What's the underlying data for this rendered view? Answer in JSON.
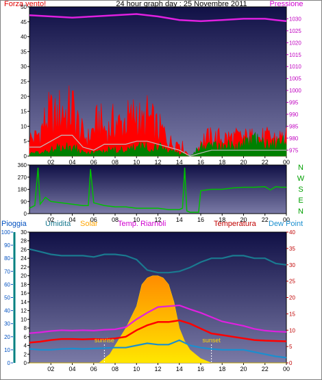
{
  "header": {
    "left_label": "Forza vento!",
    "title": "24 hour graph day : 25 Novembre 2011",
    "right_label": "Pressione"
  },
  "colors": {
    "wind": "#ff0000",
    "gust": "#c0c0c0",
    "avg_wind": "#008000",
    "pressure": "#e020e0",
    "direction": "#00c000",
    "humidity": "#1a7a90",
    "temperature": "#ff0000",
    "dew_point": "#1a8fcf",
    "indoor_temp": "#e020e0",
    "solar": "#ffc000",
    "rain_axis": "#008080",
    "panel_top": "#101046",
    "panel_bottom": "#7a7aa6"
  },
  "lower_legend": {
    "rain": "Pioggia",
    "humidity": "Umidita",
    "solar": "Solar",
    "indoor": "Temp. Riarnoli",
    "temperature": "Temperatura",
    "dew_point": "Dew Point"
  },
  "annotations": {
    "sunrise": "sunrise",
    "sunset": "sunset"
  },
  "compass": [
    "N",
    "W",
    "S",
    "E",
    "N"
  ],
  "chart_data": [
    {
      "type": "line",
      "x_ticks": [
        "02",
        "04",
        "06",
        "08",
        "10",
        "12",
        "14",
        "16",
        "18",
        "20",
        "22",
        "00"
      ],
      "left_axis": {
        "ticks": [
          0,
          5,
          10,
          15,
          20,
          25,
          30,
          35,
          40,
          45,
          50
        ],
        "ylim": [
          0,
          50
        ]
      },
      "right_axis": {
        "ticks": [
          975,
          980,
          985,
          990,
          995,
          1000,
          1005,
          1010,
          1015,
          1020,
          1025,
          1030
        ],
        "ylim": [
          972.5,
          1035
        ]
      },
      "series": [
        {
          "key": "wind",
          "x": [
            0,
            0.5,
            1,
            1.5,
            2,
            2.5,
            3,
            3.5,
            4,
            4.5,
            5,
            5.5,
            6,
            6.5,
            7,
            7.5,
            8,
            8.5,
            9,
            9.5,
            10,
            10.5,
            11,
            11.5,
            12,
            12.5,
            13,
            13.5,
            14,
            14.5,
            15,
            15.5,
            16,
            16.5,
            17,
            17.5,
            18,
            18.5,
            19,
            19.5,
            20,
            20.5,
            21,
            21.5,
            22,
            22.5,
            23,
            23.5,
            24
          ],
          "values": [
            6,
            6,
            8,
            12,
            14,
            12,
            16,
            14,
            16,
            11,
            7,
            6,
            9,
            12,
            9,
            9,
            12,
            10,
            12,
            12,
            15,
            10,
            13,
            11,
            9,
            8,
            5,
            4,
            5,
            2,
            0,
            0,
            5,
            6,
            6,
            6,
            6,
            6,
            6,
            6,
            6,
            6,
            6,
            6,
            6,
            6,
            6,
            6,
            6
          ]
        },
        {
          "key": "gust",
          "x": [
            0,
            1,
            2,
            3,
            4,
            5,
            6,
            7,
            8,
            9,
            10,
            11,
            12,
            13,
            14,
            15,
            16,
            17,
            18,
            19,
            20,
            21,
            22,
            23,
            24
          ],
          "values": [
            3,
            3,
            5,
            7,
            7,
            3,
            2,
            4,
            4,
            4,
            5,
            5,
            4,
            3,
            2,
            0,
            1,
            2,
            2,
            2,
            2,
            2,
            2,
            2,
            2
          ]
        },
        {
          "key": "avg_wind",
          "x": [
            0,
            1,
            2,
            3,
            4,
            5,
            6,
            7,
            8,
            9,
            10,
            11,
            12,
            13,
            14,
            15,
            16,
            17,
            18,
            19,
            20,
            21,
            22,
            23,
            24
          ],
          "values": [
            1,
            1,
            2,
            3,
            3,
            2,
            1,
            2,
            2,
            2,
            3,
            3,
            3,
            2,
            1,
            0,
            3,
            3,
            4,
            3,
            4,
            5,
            4,
            4,
            5
          ]
        },
        {
          "key": "pressure",
          "x": [
            0,
            2,
            4,
            6,
            8,
            10,
            12,
            14,
            16,
            18,
            20,
            22,
            23,
            24
          ],
          "values": [
            1031.5,
            1031,
            1030.5,
            1031,
            1031.5,
            1032,
            1031,
            1029.5,
            1029,
            1029.5,
            1030,
            1030,
            1029.5,
            1029
          ]
        }
      ]
    },
    {
      "type": "line",
      "x_ticks": [
        "02",
        "04",
        "06",
        "08",
        "10",
        "12",
        "14",
        "16",
        "18",
        "20",
        "22",
        "00"
      ],
      "left_axis": {
        "ticks": [
          0,
          90,
          180,
          270,
          360
        ],
        "ylim": [
          0,
          360
        ]
      },
      "series": [
        {
          "key": "direction",
          "x": [
            0,
            0.5,
            0.8,
            1,
            1.5,
            2,
            3,
            4,
            5,
            5.5,
            5.7,
            6,
            7,
            8,
            9,
            10,
            11,
            12,
            13,
            14,
            14.3,
            14.5,
            14.7,
            15,
            15.5,
            15.8,
            16,
            17,
            18,
            19,
            20,
            21,
            22,
            22.5,
            23,
            23.5,
            24
          ],
          "values": [
            40,
            60,
            340,
            70,
            120,
            90,
            80,
            70,
            60,
            60,
            330,
            80,
            60,
            50,
            50,
            40,
            40,
            40,
            30,
            30,
            40,
            340,
            20,
            10,
            10,
            10,
            170,
            180,
            180,
            190,
            195,
            195,
            200,
            175,
            200,
            195,
            195
          ]
        }
      ]
    },
    {
      "type": "line",
      "x_ticks": [
        "02",
        "04",
        "06",
        "08",
        "10",
        "12",
        "14",
        "16",
        "18",
        "20",
        "22",
        "00"
      ],
      "axis_rain": {
        "ticks": [
          0,
          10,
          20,
          30,
          40,
          50,
          60,
          70,
          80,
          90,
          100
        ],
        "ylim": [
          0,
          100
        ]
      },
      "axis_temp_left": {
        "ticks": [
          0,
          2,
          4,
          6,
          8,
          10,
          12,
          14,
          16,
          18,
          20,
          22,
          24,
          26,
          28,
          30
        ],
        "ylim": [
          0,
          30
        ]
      },
      "axis_temp_right": {
        "ticks": [
          0,
          5,
          10,
          15,
          20,
          25,
          30,
          35,
          40
        ],
        "ylim": [
          0,
          40
        ]
      },
      "series": [
        {
          "key": "solar",
          "x": [
            0,
            6.5,
            7,
            7.5,
            8,
            9,
            10,
            10.5,
            11,
            11.5,
            12,
            12.5,
            13,
            13.5,
            14,
            14.5,
            15,
            15.5,
            16,
            16.5,
            17,
            24
          ],
          "values": [
            0,
            0,
            1,
            2,
            4,
            8,
            13,
            18,
            19.5,
            20,
            20,
            19.5,
            18,
            14,
            8,
            5,
            3,
            2,
            1,
            0.5,
            0,
            0
          ]
        },
        {
          "key": "humidity",
          "x": [
            0,
            1,
            2,
            3,
            4,
            5,
            6,
            7,
            8,
            9,
            10,
            11,
            12,
            13,
            14,
            15,
            16,
            17,
            18,
            19,
            20,
            21,
            22,
            23,
            24
          ],
          "values": [
            87,
            85,
            83,
            82,
            82,
            82,
            81,
            83,
            83,
            82,
            79,
            71,
            69,
            69,
            70,
            73,
            77,
            80,
            80,
            82,
            82,
            80,
            80,
            76,
            75
          ]
        },
        {
          "key": "temperature",
          "x": [
            0,
            1,
            2,
            3,
            4,
            5,
            6,
            7,
            8,
            9,
            10,
            11,
            12,
            13,
            14,
            15,
            16,
            17,
            18,
            19,
            20,
            21,
            22,
            23,
            24
          ],
          "values": [
            6.2,
            6.5,
            7,
            7.3,
            7.3,
            7.2,
            7.3,
            7.2,
            7.5,
            8,
            10,
            11.5,
            12.5,
            12.5,
            13,
            12,
            10.5,
            9,
            8.5,
            8,
            7.5,
            7,
            6.8,
            6.7,
            6.6
          ]
        },
        {
          "key": "indoor_temp",
          "x": [
            0,
            1,
            2,
            3,
            4,
            5,
            6,
            7,
            8,
            9,
            10,
            11,
            12,
            13,
            14,
            15,
            16,
            17,
            18,
            19,
            20,
            21,
            22,
            23,
            24
          ],
          "values": [
            6.8,
            7,
            7.3,
            7.5,
            7.4,
            7.5,
            7.4,
            7.6,
            7.7,
            8.2,
            10,
            11.5,
            12.8,
            13,
            13.2,
            12.3,
            11.5,
            10.5,
            9.5,
            9,
            8.5,
            7.8,
            7.4,
            7.2,
            7.1
          ]
        },
        {
          "key": "dew_point",
          "x": [
            0,
            1,
            2,
            3,
            4,
            5,
            6,
            7,
            8,
            9,
            10,
            11,
            12,
            13,
            14,
            15,
            16,
            17,
            18,
            19,
            20,
            21,
            22,
            23,
            24
          ],
          "values": [
            3.2,
            3,
            3,
            3.2,
            3.3,
            3.2,
            3.3,
            3.4,
            3.5,
            3.5,
            4,
            4.5,
            4.2,
            4.2,
            5.2,
            4,
            3.5,
            3.2,
            3,
            3,
            3,
            2.5,
            2,
            1.5,
            1.2
          ]
        }
      ]
    }
  ]
}
